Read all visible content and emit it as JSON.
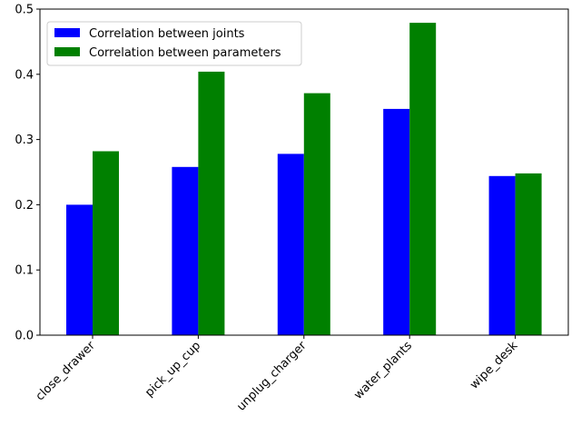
{
  "chart_data": {
    "type": "bar",
    "title": "",
    "xlabel": "",
    "ylabel": "",
    "categories": [
      "close_drawer",
      "pick_up_cup",
      "unplug_charger",
      "water_plants",
      "wipe_desk"
    ],
    "series": [
      {
        "name": "Correlation between joints",
        "color": "#0000ff",
        "values": [
          0.2,
          0.258,
          0.278,
          0.347,
          0.244
        ]
      },
      {
        "name": "Correlation between parameters",
        "color": "#008000",
        "values": [
          0.282,
          0.404,
          0.371,
          0.479,
          0.248
        ]
      }
    ],
    "ylim": [
      0,
      0.5
    ],
    "yticks": [
      "0.0",
      "0.1",
      "0.2",
      "0.3",
      "0.4",
      "0.5"
    ],
    "grid": false,
    "legend_position": "top-left"
  }
}
